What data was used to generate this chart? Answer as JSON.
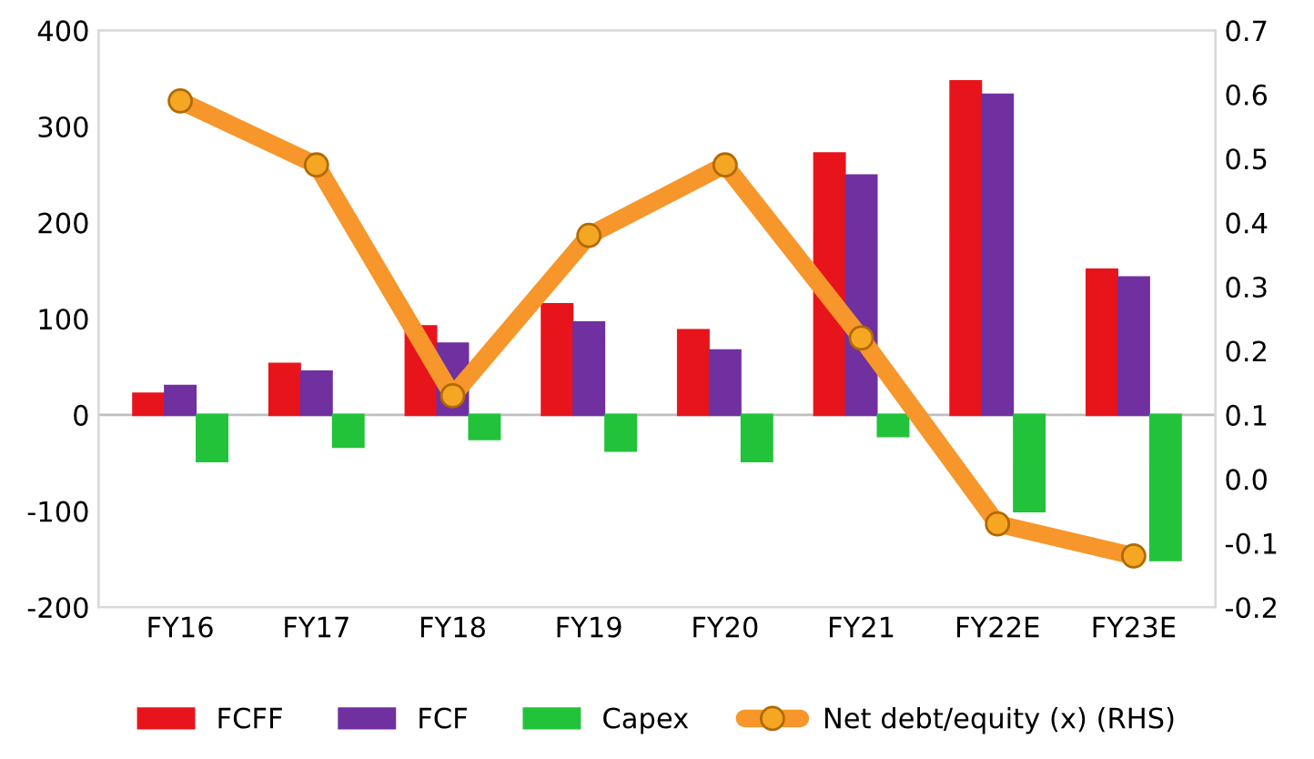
{
  "chart_data": {
    "type": "bar",
    "categories": [
      "FY16",
      "FY17",
      "FY18",
      "FY19",
      "FY20",
      "FY21",
      "FY22E",
      "FY23E"
    ],
    "series": [
      {
        "name": "FCFF",
        "color": "#e8141c",
        "values": [
          22,
          53,
          92,
          115,
          88,
          272,
          347,
          151
        ]
      },
      {
        "name": "FCF",
        "color": "#7030a0",
        "values": [
          30,
          45,
          74,
          96,
          67,
          249,
          333,
          143
        ]
      },
      {
        "name": "Capex",
        "color": "#22c33a",
        "values": [
          -48,
          -33,
          -25,
          -37,
          -48,
          -22,
          -100,
          -151
        ]
      },
      {
        "name": "Net debt/equity (x) (RHS)",
        "type": "line",
        "axis": "y2",
        "color": "#f7962a",
        "marker": "circle",
        "line_style": "solid",
        "values": [
          0.59,
          0.49,
          0.13,
          0.38,
          0.49,
          0.22,
          -0.07,
          -0.12
        ]
      }
    ],
    "ylim": [
      -200,
      400
    ],
    "yticks": [
      -200,
      -100,
      0,
      100,
      200,
      300,
      400
    ],
    "y2lim": [
      -0.2,
      0.7
    ],
    "y2ticks": [
      -0.2,
      -0.1,
      {
        "value": 0,
        "label": "0.0"
      },
      0.1,
      0.2,
      0.3,
      0.4,
      0.5,
      0.6,
      0.7
    ],
    "ref_lines": [
      {
        "axis": "y",
        "value": 0,
        "color": "#bfbfbf"
      }
    ],
    "grid": false,
    "legend": "bottom"
  }
}
